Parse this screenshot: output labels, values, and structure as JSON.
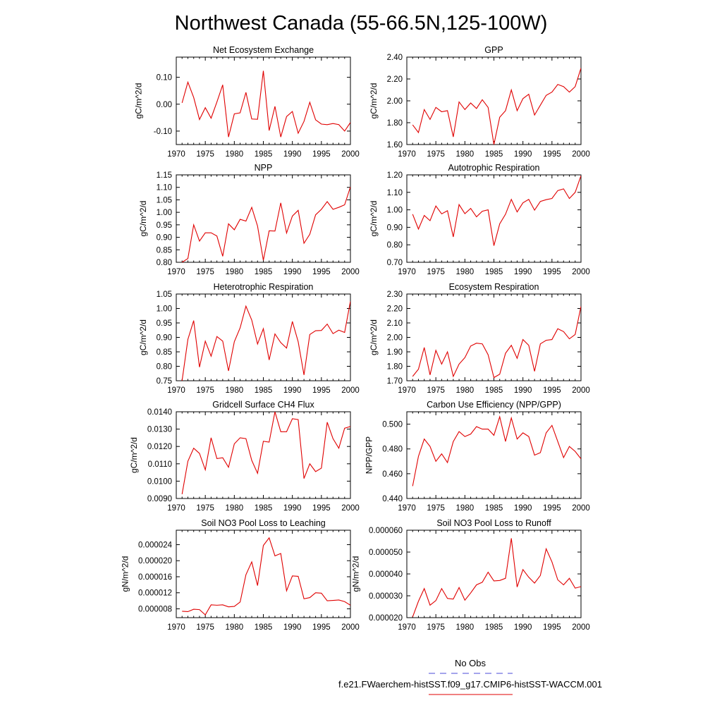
{
  "figure": {
    "title": "Northwest Canada (55-66.5N,125-100W)",
    "legend": [
      {
        "label": "No Obs",
        "color": "#4a4ad8",
        "dash": true
      },
      {
        "label": "f.e21.FWaerchem-histSST.f09_g17.CMIP6-histSST-WACCM.001",
        "color": "#e00000",
        "dash": false
      }
    ]
  },
  "chart_data": [
    {
      "type": "line",
      "title": "Net Ecosystem Exchange",
      "ylabel": "gC/m^2/d",
      "xlim": [
        1970,
        2000
      ],
      "ylim": [
        -0.15,
        0.175
      ],
      "yticks": [
        -0.1,
        0.0,
        0.1
      ],
      "ytick_labels": [
        "-0.10",
        "0.00",
        "0.10"
      ],
      "xticks": [
        1970,
        1975,
        1980,
        1985,
        1990,
        1995,
        2000
      ],
      "series": [
        {
          "color": "#e00000",
          "x": [
            1971,
            1972,
            1973,
            1974,
            1975,
            1976,
            1977,
            1978,
            1979,
            1980,
            1981,
            1982,
            1983,
            1984,
            1985,
            1986,
            1987,
            1988,
            1989,
            1990,
            1991,
            1992,
            1993,
            1994,
            1995,
            1996,
            1997,
            1998,
            1999,
            2000
          ],
          "values": [
            0.005,
            0.082,
            0.025,
            -0.057,
            -0.013,
            -0.052,
            0.008,
            0.072,
            -0.122,
            -0.036,
            -0.032,
            0.044,
            -0.055,
            -0.056,
            0.124,
            -0.098,
            -0.008,
            -0.122,
            -0.046,
            -0.027,
            -0.108,
            -0.064,
            0.007,
            -0.058,
            -0.074,
            -0.076,
            -0.072,
            -0.076,
            -0.1,
            -0.068
          ]
        }
      ]
    },
    {
      "type": "line",
      "title": "GPP",
      "ylabel": "gC/m^2/d",
      "xlim": [
        1970,
        2000
      ],
      "ylim": [
        1.6,
        2.4
      ],
      "yticks": [
        1.6,
        1.8,
        2.0,
        2.2,
        2.4
      ],
      "ytick_labels": [
        "1.60",
        "1.80",
        "2.00",
        "2.20",
        "2.40"
      ],
      "xticks": [
        1970,
        1975,
        1980,
        1985,
        1990,
        1995,
        2000
      ],
      "series": [
        {
          "color": "#e00000",
          "x": [
            1971,
            1972,
            1973,
            1974,
            1975,
            1976,
            1977,
            1978,
            1979,
            1980,
            1981,
            1982,
            1983,
            1984,
            1985,
            1986,
            1987,
            1988,
            1989,
            1990,
            1991,
            1992,
            1993,
            1994,
            1995,
            1996,
            1997,
            1998,
            1999,
            2000
          ],
          "values": [
            1.78,
            1.71,
            1.92,
            1.83,
            1.94,
            1.9,
            1.91,
            1.67,
            1.99,
            1.92,
            1.98,
            1.93,
            2.01,
            1.94,
            1.6,
            1.85,
            1.91,
            2.1,
            1.91,
            2.02,
            2.06,
            1.87,
            1.96,
            2.05,
            2.08,
            2.15,
            2.13,
            2.08,
            2.13,
            2.3
          ]
        }
      ]
    },
    {
      "type": "line",
      "title": "NPP",
      "ylabel": "gC/m^2/d",
      "xlim": [
        1970,
        2000
      ],
      "ylim": [
        0.8,
        1.15
      ],
      "yticks": [
        0.8,
        0.85,
        0.9,
        0.95,
        1.0,
        1.05,
        1.1,
        1.15
      ],
      "ytick_labels": [
        "0.80",
        "0.85",
        "0.90",
        "0.95",
        "1.00",
        "1.05",
        "1.10",
        "1.15"
      ],
      "xticks": [
        1970,
        1975,
        1980,
        1985,
        1990,
        1995,
        2000
      ],
      "series": [
        {
          "color": "#e00000",
          "x": [
            1971,
            1972,
            1973,
            1974,
            1975,
            1976,
            1977,
            1978,
            1979,
            1980,
            1981,
            1982,
            1983,
            1984,
            1985,
            1986,
            1987,
            1988,
            1989,
            1990,
            1991,
            1992,
            1993,
            1994,
            1995,
            1996,
            1997,
            1998,
            1999,
            2000
          ],
          "values": [
            0.8,
            0.815,
            0.95,
            0.885,
            0.918,
            0.918,
            0.905,
            0.824,
            0.954,
            0.93,
            0.972,
            0.965,
            1.02,
            0.945,
            0.808,
            0.926,
            0.925,
            1.038,
            0.917,
            0.985,
            1.008,
            0.876,
            0.912,
            0.99,
            1.012,
            1.043,
            1.012,
            1.02,
            1.03,
            1.102
          ]
        }
      ]
    },
    {
      "type": "line",
      "title": "Autotrophic Respiration",
      "ylabel": "gC/m^2/d",
      "xlim": [
        1970,
        2000
      ],
      "ylim": [
        0.7,
        1.2
      ],
      "yticks": [
        0.7,
        0.8,
        0.9,
        1.0,
        1.1,
        1.2
      ],
      "ytick_labels": [
        "0.70",
        "0.80",
        "0.90",
        "1.00",
        "1.10",
        "1.20"
      ],
      "xticks": [
        1970,
        1975,
        1980,
        1985,
        1990,
        1995,
        2000
      ],
      "series": [
        {
          "color": "#e00000",
          "x": [
            1971,
            1972,
            1973,
            1974,
            1975,
            1976,
            1977,
            1978,
            1979,
            1980,
            1981,
            1982,
            1983,
            1984,
            1985,
            1986,
            1987,
            1988,
            1989,
            1990,
            1991,
            1992,
            1993,
            1994,
            1995,
            1996,
            1997,
            1998,
            1999,
            2000
          ],
          "values": [
            0.975,
            0.89,
            0.968,
            0.938,
            1.022,
            0.977,
            0.995,
            0.845,
            1.03,
            0.978,
            1.008,
            0.96,
            0.992,
            1.0,
            0.795,
            0.92,
            0.975,
            1.06,
            0.988,
            1.04,
            1.06,
            0.998,
            1.048,
            1.058,
            1.065,
            1.11,
            1.12,
            1.065,
            1.1,
            1.195
          ]
        }
      ]
    },
    {
      "type": "line",
      "title": "Heterotrophic Respiration",
      "ylabel": "gC/m^2/d",
      "xlim": [
        1970,
        2000
      ],
      "ylim": [
        0.75,
        1.05
      ],
      "yticks": [
        0.75,
        0.8,
        0.85,
        0.9,
        0.95,
        1.0,
        1.05
      ],
      "ytick_labels": [
        "0.75",
        "0.80",
        "0.85",
        "0.90",
        "0.95",
        "1.00",
        "1.05"
      ],
      "xticks": [
        1970,
        1975,
        1980,
        1985,
        1990,
        1995,
        2000
      ],
      "series": [
        {
          "color": "#e00000",
          "x": [
            1971,
            1972,
            1973,
            1974,
            1975,
            1976,
            1977,
            1978,
            1979,
            1980,
            1981,
            1982,
            1983,
            1984,
            1985,
            1986,
            1987,
            1988,
            1989,
            1990,
            1991,
            1992,
            1993,
            1994,
            1995,
            1996,
            1997,
            1998,
            1999,
            2000
          ],
          "values": [
            0.75,
            0.893,
            0.958,
            0.797,
            0.887,
            0.835,
            0.903,
            0.887,
            0.784,
            0.885,
            0.933,
            1.008,
            0.96,
            0.877,
            0.93,
            0.822,
            0.912,
            0.882,
            0.863,
            0.955,
            0.885,
            0.77,
            0.91,
            0.923,
            0.924,
            0.946,
            0.913,
            0.925,
            0.917,
            1.025
          ]
        }
      ]
    },
    {
      "type": "line",
      "title": "Ecosystem Respiration",
      "ylabel": "gC/m^2/d",
      "xlim": [
        1970,
        2000
      ],
      "ylim": [
        1.7,
        2.3
      ],
      "yticks": [
        1.7,
        1.8,
        1.9,
        2.0,
        2.1,
        2.2,
        2.3
      ],
      "ytick_labels": [
        "1.70",
        "1.80",
        "1.90",
        "2.00",
        "2.10",
        "2.20",
        "2.30"
      ],
      "xticks": [
        1970,
        1975,
        1980,
        1985,
        1990,
        1995,
        2000
      ],
      "series": [
        {
          "color": "#e00000",
          "x": [
            1971,
            1972,
            1973,
            1974,
            1975,
            1976,
            1977,
            1978,
            1979,
            1980,
            1981,
            1982,
            1983,
            1984,
            1985,
            1986,
            1987,
            1988,
            1989,
            1990,
            1991,
            1992,
            1993,
            1994,
            1995,
            1996,
            1997,
            1998,
            1999,
            2000
          ],
          "values": [
            1.73,
            1.78,
            1.93,
            1.74,
            1.91,
            1.815,
            1.9,
            1.73,
            1.815,
            1.86,
            1.94,
            1.96,
            1.955,
            1.88,
            1.722,
            1.745,
            1.89,
            1.945,
            1.855,
            1.985,
            1.945,
            1.765,
            1.955,
            1.98,
            1.985,
            2.06,
            2.04,
            1.99,
            2.02,
            2.215
          ]
        }
      ]
    },
    {
      "type": "line",
      "title": "Gridcell Surface CH4 Flux",
      "ylabel": "gC/m^2/d",
      "xlim": [
        1970,
        2000
      ],
      "ylim": [
        0.009,
        0.014
      ],
      "yticks": [
        0.009,
        0.01,
        0.011,
        0.012,
        0.013,
        0.014
      ],
      "ytick_labels": [
        "0.0090",
        "0.0100",
        "0.0110",
        "0.0120",
        "0.0130",
        "0.0140"
      ],
      "xticks": [
        1970,
        1975,
        1980,
        1985,
        1990,
        1995,
        2000
      ],
      "series": [
        {
          "color": "#e00000",
          "x": [
            1971,
            1972,
            1973,
            1974,
            1975,
            1976,
            1977,
            1978,
            1979,
            1980,
            1981,
            1982,
            1983,
            1984,
            1985,
            1986,
            1987,
            1988,
            1989,
            1990,
            1991,
            1992,
            1993,
            1994,
            1995,
            1996,
            1997,
            1998,
            1999,
            2000
          ],
          "values": [
            0.00925,
            0.01115,
            0.0119,
            0.0116,
            0.01065,
            0.0125,
            0.0113,
            0.01135,
            0.0108,
            0.01215,
            0.0125,
            0.01245,
            0.0112,
            0.01045,
            0.0123,
            0.01225,
            0.014,
            0.01285,
            0.01285,
            0.0136,
            0.01355,
            0.01015,
            0.011,
            0.01055,
            0.01075,
            0.0134,
            0.01245,
            0.0119,
            0.01305,
            0.01315
          ]
        }
      ]
    },
    {
      "type": "line",
      "title": "Carbon Use Efficiency (NPP/GPP)",
      "ylabel": "NPP/GPP",
      "xlim": [
        1970,
        2000
      ],
      "ylim": [
        0.44,
        0.51
      ],
      "yticks": [
        0.44,
        0.46,
        0.48,
        0.5
      ],
      "ytick_labels": [
        "0.440",
        "0.460",
        "0.480",
        "0.500"
      ],
      "xticks": [
        1970,
        1975,
        1980,
        1985,
        1990,
        1995,
        2000
      ],
      "series": [
        {
          "color": "#e00000",
          "x": [
            1971,
            1972,
            1973,
            1974,
            1975,
            1976,
            1977,
            1978,
            1979,
            1980,
            1981,
            1982,
            1983,
            1984,
            1985,
            1986,
            1987,
            1988,
            1989,
            1990,
            1991,
            1992,
            1993,
            1994,
            1995,
            1996,
            1997,
            1998,
            1999,
            2000
          ],
          "values": [
            0.45,
            0.474,
            0.488,
            0.482,
            0.47,
            0.476,
            0.469,
            0.486,
            0.494,
            0.49,
            0.492,
            0.498,
            0.496,
            0.496,
            0.491,
            0.506,
            0.486,
            0.505,
            0.488,
            0.493,
            0.49,
            0.475,
            0.477,
            0.493,
            0.499,
            0.486,
            0.473,
            0.482,
            0.478,
            0.472
          ]
        }
      ]
    },
    {
      "type": "line",
      "title": "Soil NO3 Pool Loss to Leaching",
      "ylabel": "gN/m^2/d",
      "xlim": [
        1970,
        2000
      ],
      "ylim": [
        5.8e-06,
        2.76e-05
      ],
      "yticks": [
        8e-06,
        1.2e-05,
        1.6e-05,
        2e-05,
        2.4e-05
      ],
      "ytick_labels": [
        "0.000008",
        "0.000012",
        "0.000016",
        "0.000020",
        "0.000024"
      ],
      "xticks": [
        1970,
        1975,
        1980,
        1985,
        1990,
        1995,
        2000
      ],
      "series": [
        {
          "color": "#e00000",
          "x": [
            1971,
            1972,
            1973,
            1974,
            1975,
            1976,
            1977,
            1978,
            1979,
            1980,
            1981,
            1982,
            1983,
            1984,
            1985,
            1986,
            1987,
            1988,
            1989,
            1990,
            1991,
            1992,
            1993,
            1994,
            1995,
            1996,
            1997,
            1998,
            1999,
            2000
          ],
          "values": [
            7.4e-06,
            7.3e-06,
            7.9e-06,
            7.8e-06,
            6.5e-06,
            9e-06,
            8.9e-06,
            9e-06,
            8.5e-06,
            8.6e-06,
            9.7e-06,
            1.65e-05,
            1.97e-05,
            1.38e-05,
            2.38e-05,
            2.57e-05,
            2.12e-05,
            2.18e-05,
            1.25e-05,
            1.62e-05,
            1.61e-05,
            1.05e-05,
            1.08e-05,
            1.2e-05,
            1.19e-05,
            1e-05,
            1.01e-05,
            1.02e-05,
            9.8e-06,
            8.9e-06
          ]
        }
      ]
    },
    {
      "type": "line",
      "title": "Soil NO3 Pool Loss to Runoff",
      "ylabel": "gN/m^2/d",
      "xlim": [
        1970,
        2000
      ],
      "ylim": [
        2e-05,
        6e-05
      ],
      "yticks": [
        2e-05,
        3e-05,
        4e-05,
        5e-05,
        6e-05
      ],
      "ytick_labels": [
        "0.000020",
        "0.000030",
        "0.000040",
        "0.000050",
        "0.000060"
      ],
      "xticks": [
        1970,
        1975,
        1980,
        1985,
        1990,
        1995,
        2000
      ],
      "series": [
        {
          "color": "#e00000",
          "x": [
            1971,
            1972,
            1973,
            1974,
            1975,
            1976,
            1977,
            1978,
            1979,
            1980,
            1981,
            1982,
            1983,
            1984,
            1985,
            1986,
            1987,
            1988,
            1989,
            1990,
            1991,
            1992,
            1993,
            1994,
            1995,
            1996,
            1997,
            1998,
            1999,
            2000
          ],
          "values": [
            2.03e-05,
            2.75e-05,
            3.33e-05,
            2.57e-05,
            2.78e-05,
            3.33e-05,
            2.88e-05,
            2.85e-05,
            3.38e-05,
            2.8e-05,
            3.13e-05,
            3.5e-05,
            3.62e-05,
            4.08e-05,
            3.68e-05,
            3.7e-05,
            3.8e-05,
            5.63e-05,
            3.4e-05,
            4.2e-05,
            3.85e-05,
            3.58e-05,
            3.93e-05,
            5.15e-05,
            4.55e-05,
            3.73e-05,
            3.5e-05,
            3.8e-05,
            3.35e-05,
            3.42e-05
          ]
        }
      ]
    }
  ]
}
